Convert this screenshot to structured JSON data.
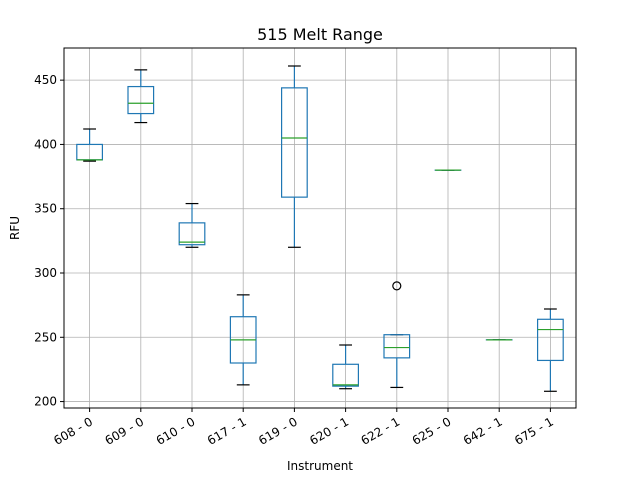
{
  "chart_data": {
    "type": "boxplot",
    "title": "515 Melt Range",
    "xlabel": "Instrument",
    "ylabel": "RFU",
    "ylim": [
      195,
      475
    ],
    "yticks": [
      200,
      250,
      300,
      350,
      400,
      450
    ],
    "grid": true,
    "categories": [
      "608 - 0",
      "609 - 0",
      "610 - 0",
      "617 - 1",
      "619 - 0",
      "620 - 1",
      "622 - 1",
      "625 - 0",
      "642 - 1",
      "675 - 1"
    ],
    "boxes": [
      {
        "min": 387,
        "q1": 388,
        "median": 388,
        "q3": 400,
        "max": 412,
        "fliers": []
      },
      {
        "min": 417,
        "q1": 424,
        "median": 432,
        "q3": 445,
        "max": 458,
        "fliers": []
      },
      {
        "min": 320,
        "q1": 322,
        "median": 324,
        "q3": 339,
        "max": 354,
        "fliers": []
      },
      {
        "min": 213,
        "q1": 230,
        "median": 248,
        "q3": 266,
        "max": 283,
        "fliers": []
      },
      {
        "min": 320,
        "q1": 359,
        "median": 405,
        "q3": 444,
        "max": 461,
        "fliers": []
      },
      {
        "min": 210,
        "q1": 212,
        "median": 213,
        "q3": 229,
        "max": 244,
        "fliers": []
      },
      {
        "min": 211,
        "q1": 234,
        "median": 242,
        "q3": 252,
        "max": 252,
        "fliers": [
          290
        ]
      },
      {
        "min": 380,
        "q1": 380,
        "median": 380,
        "q3": 380,
        "max": 380,
        "fliers": []
      },
      {
        "min": 248,
        "q1": 248,
        "median": 248,
        "q3": 248,
        "max": 248,
        "fliers": []
      },
      {
        "min": 208,
        "q1": 232,
        "median": 256,
        "q3": 264,
        "max": 272,
        "fliers": []
      }
    ]
  }
}
